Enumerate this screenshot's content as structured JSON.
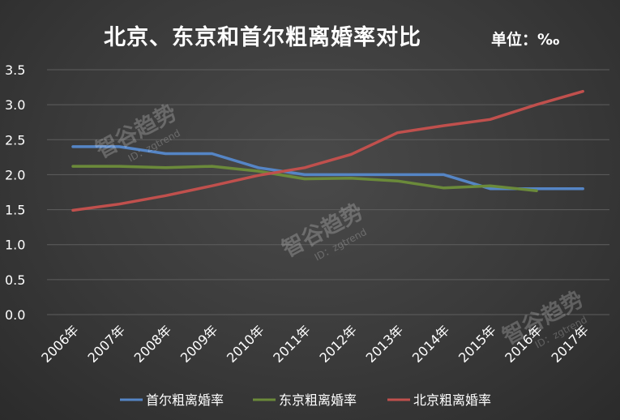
{
  "title": "北京、东京和首尔粗离婚率对比",
  "unit": "单位：‰",
  "watermark": {
    "text": "智谷趋势",
    "id": "ID：zgtrend"
  },
  "colors": {
    "首尔": "#5585c5",
    "东京": "#6b8a3a",
    "北京": "#c0504d",
    "grid": "#5e5e5e",
    "text": "#ffffff"
  },
  "chart_data": {
    "type": "line",
    "title": "北京、东京和首尔粗离婚率对比",
    "x": [
      "2006年",
      "2007年",
      "2008年",
      "2009年",
      "2010年",
      "2011年",
      "2012年",
      "2013年",
      "2014年",
      "2015年",
      "2016年",
      "2017年"
    ],
    "ylim": [
      0,
      3.5
    ],
    "yticks": [
      "0.0",
      "0.5",
      "1.0",
      "1.5",
      "2.0",
      "2.5",
      "3.0",
      "3.5"
    ],
    "grid": true,
    "legend": "bottom",
    "series": [
      {
        "name": "首尔粗离婚率",
        "key": "首尔",
        "values": [
          2.4,
          2.4,
          2.3,
          2.3,
          2.1,
          2.0,
          2.0,
          2.0,
          2.0,
          1.8,
          1.8,
          1.8
        ]
      },
      {
        "name": "东京粗离婚率",
        "key": "东京",
        "values": [
          2.12,
          2.12,
          2.1,
          2.12,
          2.05,
          1.94,
          1.95,
          1.91,
          1.81,
          1.84,
          1.77,
          null
        ]
      },
      {
        "name": "北京粗离婚率",
        "key": "北京",
        "values": [
          1.49,
          1.58,
          1.7,
          1.84,
          1.99,
          2.1,
          2.29,
          2.6,
          2.7,
          2.79,
          3.0,
          3.19
        ]
      }
    ]
  }
}
